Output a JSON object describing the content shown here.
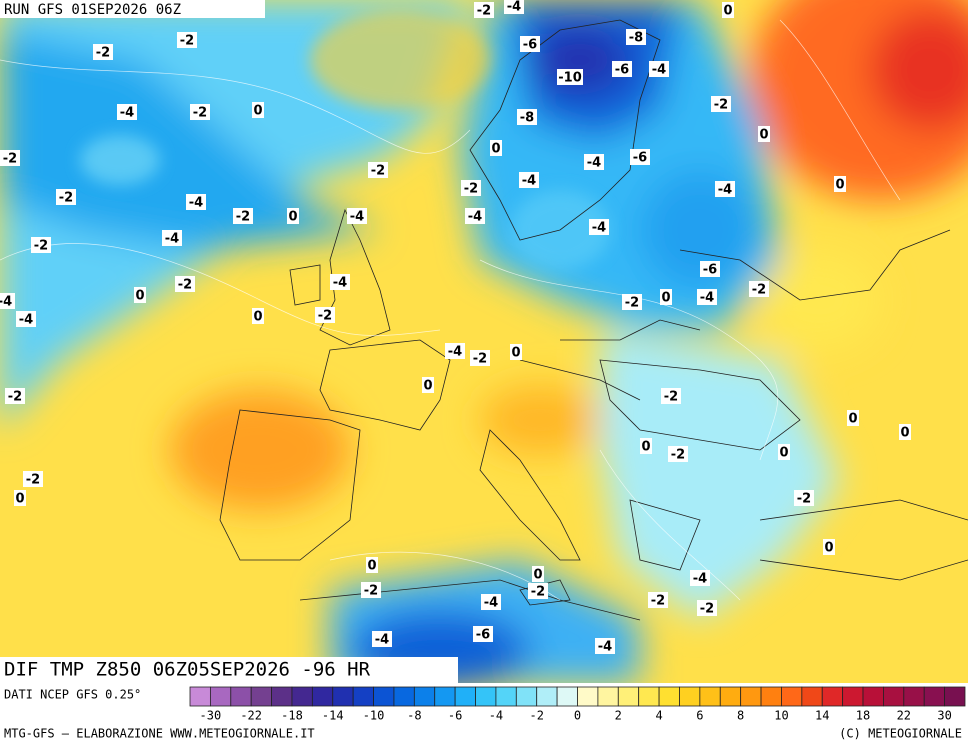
{
  "header": {
    "run": "RUN GFS 01SEP2026 06Z"
  },
  "footer": {
    "product": "DIF TMP Z850 06Z05SEP2026 -96 HR",
    "data_source": "DATI NCEP GFS 0.25°"
  },
  "colorbar": {
    "labels": [
      "-30",
      "-22",
      "-18",
      "-14",
      "-10",
      "-8",
      "-6",
      "-4",
      "-2",
      "0",
      "2",
      "4",
      "6",
      "8",
      "10",
      "14",
      "18",
      "22",
      "30"
    ],
    "colors": [
      "#c88ad8",
      "#a868c0",
      "#8c50a8",
      "#744090",
      "#5c3088",
      "#442890",
      "#3028a0",
      "#2030b0",
      "#1440c4",
      "#0c54d4",
      "#0868e0",
      "#0c80ea",
      "#1498f2",
      "#20b0f8",
      "#34c4f8",
      "#54d4f8",
      "#80e2f8",
      "#b0eef8",
      "#def9f6",
      "#fffac8",
      "#fff5a0",
      "#fff078",
      "#ffe850",
      "#ffe030",
      "#ffd020",
      "#ffc018",
      "#ffac10",
      "#ff9810",
      "#ff8010",
      "#ff6818",
      "#f04818",
      "#e02828",
      "#cc1830",
      "#b81038",
      "#a81040",
      "#981048",
      "#881050",
      "#781050"
    ]
  },
  "credits": {
    "left": "MTG-GFS — ELABORAZIONE WWW.METEOGIORNALE.IT",
    "right": "(C) METEOGIORNALE"
  },
  "map": {
    "contour_labels": [
      "-2",
      "-2",
      "-4",
      "-2",
      "0",
      "-2",
      "-2",
      "-2",
      "-4",
      "-2",
      "0",
      "-4",
      "-4",
      "-2",
      "-2",
      "0",
      "-4",
      "-4",
      "-4",
      "0",
      "-2",
      "-2",
      "-2",
      "0",
      "-2",
      "-4",
      "-6",
      "-10",
      "-8",
      "0",
      "-8",
      "-6",
      "-4",
      "0",
      "-2",
      "0",
      "-6",
      "-4",
      "-4",
      "-2",
      "-4",
      "-4",
      "0",
      "-4",
      "-6",
      "-4",
      "-2",
      "-2",
      "0",
      "-4",
      "-2",
      "0",
      "0",
      "-2",
      "0",
      "0",
      "0",
      "-2",
      "0",
      "-2",
      "0",
      "0",
      "-2",
      "0",
      "-2",
      "-4",
      "-4",
      "-2",
      "-2",
      "-4",
      "-6",
      "-4"
    ]
  }
}
